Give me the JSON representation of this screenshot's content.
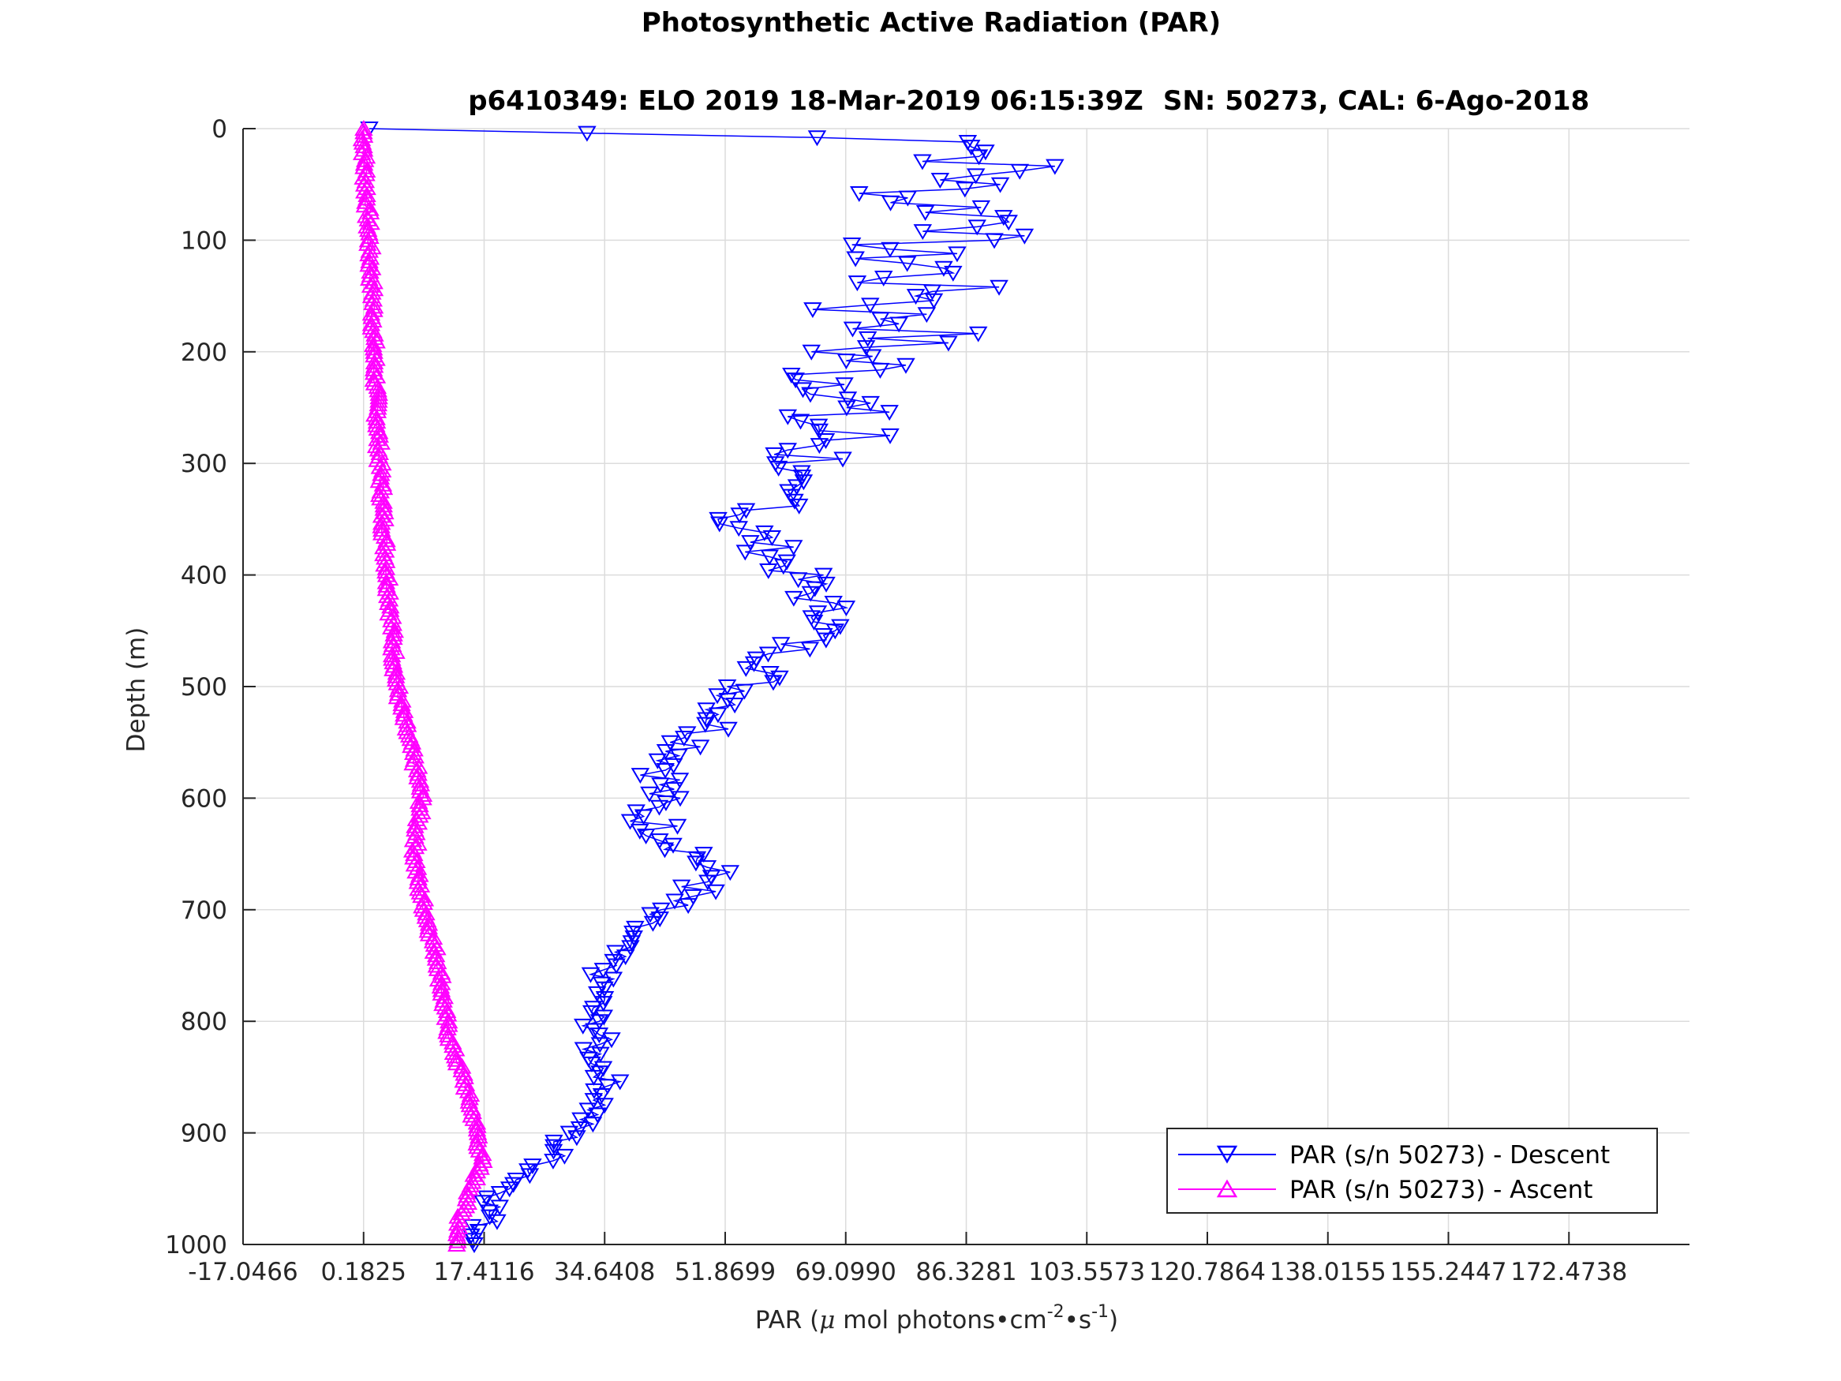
{
  "chart_data": {
    "type": "line",
    "title": "Photosynthetic Active Radiation (PAR)",
    "subtitle_left": "p6410349: ELO 2019 18-Mar-2019 06:15:39Z",
    "subtitle_right": "SN: 50273, CAL: 6-Ago-2018",
    "xlabel": {
      "pre": "PAR (",
      "mu": "μ",
      "mid": " mol photons",
      "dot1": "•",
      "cm": "cm",
      "sup1": "-2",
      "dot2": "•",
      "s": "s",
      "sup2": "-1",
      "post": ")"
    },
    "ylabel": "Depth (m)",
    "xlim": [
      -17.0466,
      189.7029
    ],
    "ylim": [
      1000,
      0
    ],
    "y_reversed": true,
    "xticks": [
      -17.0466,
      0.1825,
      17.4116,
      34.6408,
      51.8699,
      69.099,
      86.3281,
      103.5573,
      120.7864,
      138.0155,
      155.2447,
      172.4738
    ],
    "xtick_labels": [
      "-17.0466",
      "0.1825",
      "17.4116",
      "34.6408",
      "51.8699",
      "69.0990",
      "86.3281",
      "103.5573",
      "120.7864",
      "138.0155",
      "155.2447",
      "172.4738"
    ],
    "yticks": [
      0,
      100,
      200,
      300,
      400,
      500,
      600,
      700,
      800,
      900,
      1000
    ],
    "ytick_labels": [
      "0",
      "100",
      "200",
      "300",
      "400",
      "500",
      "600",
      "700",
      "800",
      "900",
      "1000"
    ],
    "grid": true,
    "legend_position": "bottom-right",
    "series": [
      {
        "name": "PAR (s/n 50273) - Descent",
        "color": "#0000ff",
        "marker": "triangle-down",
        "depth": [
          0,
          12,
          25,
          38,
          50,
          62,
          75,
          88,
          100,
          112,
          125,
          138,
          150,
          162,
          175,
          188,
          200,
          212,
          225,
          238,
          250,
          262,
          275,
          288,
          300,
          312,
          325,
          338,
          350,
          362,
          375,
          388,
          400,
          412,
          425,
          438,
          450,
          462,
          475,
          488,
          500,
          512,
          525,
          538,
          550,
          562,
          575,
          588,
          600,
          612,
          625,
          638,
          650,
          662,
          675,
          688,
          700,
          712,
          725,
          738,
          750,
          762,
          775,
          788,
          800,
          812,
          825,
          838,
          850,
          862,
          875,
          888,
          900,
          912,
          925,
          938,
          950,
          962,
          975,
          988,
          1000
        ],
        "par": [
          1,
          95,
          88,
          92,
          85,
          78,
          88,
          95,
          80,
          75,
          82,
          78,
          85,
          72,
          80,
          78,
          70,
          72,
          68,
          74,
          66,
          64,
          68,
          66,
          62,
          60,
          58,
          62,
          52,
          56,
          58,
          60,
          62,
          64,
          65,
          68,
          66,
          62,
          60,
          58,
          55,
          54,
          52,
          50,
          48,
          46,
          44,
          43,
          42,
          41,
          42,
          45,
          48,
          49,
          50,
          46,
          42,
          40,
          38,
          36,
          35,
          34,
          34,
          33,
          33,
          34,
          33,
          34,
          35,
          35,
          34,
          32,
          30,
          28,
          27,
          24,
          21,
          19,
          18,
          17,
          16
        ]
      },
      {
        "name": "PAR (s/n 50273) - Ascent",
        "color": "#ff00ff",
        "marker": "triangle-up",
        "depth": [
          0,
          25,
          50,
          75,
          100,
          125,
          150,
          175,
          200,
          225,
          250,
          275,
          300,
          325,
          350,
          375,
          400,
          425,
          450,
          475,
          500,
          525,
          550,
          575,
          600,
          625,
          650,
          675,
          700,
          725,
          750,
          775,
          800,
          825,
          850,
          875,
          900,
          925,
          950,
          975,
          1000
        ],
        "par": [
          0.2,
          0.3,
          0.5,
          0.8,
          1.0,
          1.2,
          1.5,
          1.6,
          1.7,
          1.9,
          2.1,
          2.3,
          2.5,
          2.8,
          3.0,
          3.3,
          3.6,
          4.0,
          4.3,
          4.6,
          5.0,
          5.8,
          6.8,
          7.8,
          8.5,
          7.8,
          7.5,
          8.0,
          9.0,
          10.0,
          11.0,
          11.5,
          12.0,
          13.0,
          14.5,
          15.5,
          16.5,
          17.0,
          15.5,
          14.0,
          13.5
        ]
      }
    ]
  }
}
